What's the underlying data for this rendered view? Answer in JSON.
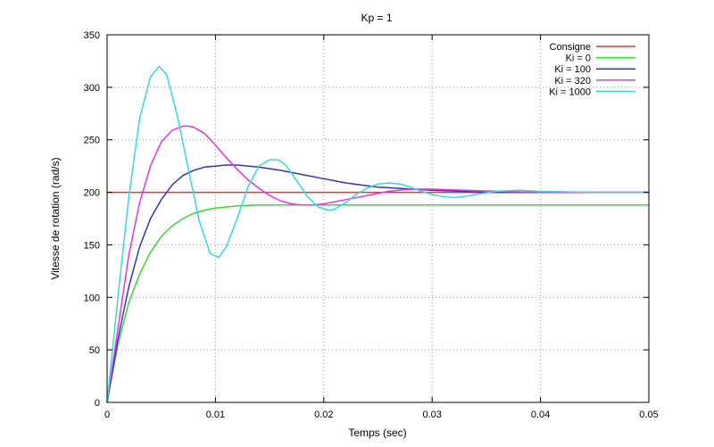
{
  "chart_data": {
    "type": "line",
    "title": "Kp = 1",
    "xlabel": "Temps (sec)",
    "ylabel": "Vitesse de rotation (rad/s)",
    "xlim": [
      0,
      0.05
    ],
    "ylim": [
      0,
      350
    ],
    "xticks": [
      0,
      0.01,
      0.02,
      0.03,
      0.04,
      0.05
    ],
    "xtick_labels": [
      "0",
      "0.01",
      "0.02",
      "0.03",
      "0.04",
      "0.05"
    ],
    "yticks": [
      0,
      50,
      100,
      150,
      200,
      250,
      300,
      350
    ],
    "ytick_labels": [
      "0",
      "50",
      "100",
      "150",
      "200",
      "250",
      "300",
      "350"
    ],
    "grid": true,
    "legend_position": "top-right",
    "series": [
      {
        "name": "Consigne",
        "color": "#ee3333",
        "x": [
          0,
          0.05
        ],
        "y": [
          200,
          200
        ]
      },
      {
        "name": "Ki = 0",
        "color": "#33dd33",
        "x": [
          0,
          0.001,
          0.002,
          0.003,
          0.004,
          0.005,
          0.006,
          0.007,
          0.008,
          0.009,
          0.01,
          0.012,
          0.014,
          0.016,
          0.018,
          0.02,
          0.025,
          0.03,
          0.035,
          0.04,
          0.045,
          0.05
        ],
        "y": [
          0,
          55,
          95,
          122,
          143,
          158,
          168,
          175,
          180,
          183,
          185,
          187,
          188,
          188,
          188,
          188,
          188,
          188,
          188,
          188,
          188,
          188
        ]
      },
      {
        "name": "Ki = 100",
        "color": "#3333bb",
        "x": [
          0,
          0.001,
          0.002,
          0.003,
          0.004,
          0.005,
          0.006,
          0.007,
          0.008,
          0.009,
          0.01,
          0.011,
          0.012,
          0.013,
          0.014,
          0.016,
          0.018,
          0.02,
          0.022,
          0.025,
          0.03,
          0.035,
          0.04,
          0.045,
          0.05
        ],
        "y": [
          0,
          60,
          110,
          148,
          175,
          193,
          207,
          216,
          221,
          224,
          225,
          226,
          226,
          225,
          224,
          221,
          217,
          213,
          209,
          205,
          202,
          200,
          200,
          200,
          200
        ]
      },
      {
        "name": "Ki = 320",
        "color": "#ee33dd",
        "x": [
          0,
          0.001,
          0.002,
          0.003,
          0.004,
          0.005,
          0.006,
          0.007,
          0.0075,
          0.008,
          0.009,
          0.01,
          0.011,
          0.012,
          0.013,
          0.014,
          0.015,
          0.016,
          0.017,
          0.018,
          0.019,
          0.02,
          0.022,
          0.024,
          0.026,
          0.028,
          0.03,
          0.033,
          0.036,
          0.04,
          0.045,
          0.05
        ],
        "y": [
          0,
          70,
          140,
          190,
          225,
          248,
          259,
          263,
          263,
          262,
          256,
          245,
          233,
          222,
          212,
          204,
          197,
          192,
          189,
          188,
          188,
          189,
          193,
          197,
          201,
          203,
          203,
          202,
          201,
          200,
          200,
          200
        ]
      },
      {
        "name": "Ki = 1000",
        "color": "#33dddd",
        "x": [
          0,
          0.001,
          0.002,
          0.003,
          0.004,
          0.0048,
          0.0055,
          0.0065,
          0.0075,
          0.0085,
          0.0095,
          0.0103,
          0.011,
          0.012,
          0.013,
          0.014,
          0.015,
          0.0158,
          0.0165,
          0.0175,
          0.0185,
          0.0195,
          0.0205,
          0.021,
          0.022,
          0.023,
          0.024,
          0.025,
          0.026,
          0.027,
          0.028,
          0.029,
          0.03,
          0.031,
          0.032,
          0.033,
          0.034,
          0.036,
          0.038,
          0.04,
          0.045,
          0.05
        ],
        "y": [
          0,
          100,
          195,
          270,
          310,
          320,
          312,
          272,
          222,
          173,
          142,
          138,
          148,
          175,
          205,
          225,
          231,
          231,
          226,
          211,
          196,
          186,
          183,
          184,
          190,
          198,
          204,
          208,
          209,
          208,
          205,
          201,
          198,
          196,
          195,
          196,
          198,
          201,
          202,
          201,
          200,
          200
        ]
      }
    ]
  }
}
